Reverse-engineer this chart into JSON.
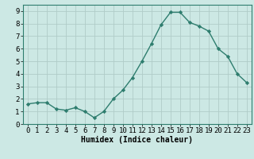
{
  "x": [
    0,
    1,
    2,
    3,
    4,
    5,
    6,
    7,
    8,
    9,
    10,
    11,
    12,
    13,
    14,
    15,
    16,
    17,
    18,
    19,
    20,
    21,
    22,
    23
  ],
  "y": [
    1.6,
    1.7,
    1.7,
    1.2,
    1.1,
    1.3,
    1.0,
    0.5,
    1.0,
    2.0,
    2.7,
    3.7,
    5.0,
    6.4,
    7.9,
    8.9,
    8.9,
    8.1,
    7.8,
    7.4,
    6.0,
    5.4,
    4.0,
    3.3
  ],
  "line_color": "#2e7d6e",
  "marker": "D",
  "marker_size": 2.2,
  "line_width": 1.0,
  "background_color": "#cce8e4",
  "grid_color": "#b0ccc8",
  "xlabel": "Humidex (Indice chaleur)",
  "xlabel_fontsize": 7,
  "tick_fontsize": 6.5,
  "xlim": [
    -0.5,
    23.5
  ],
  "ylim": [
    0,
    9.5
  ],
  "yticks": [
    0,
    1,
    2,
    3,
    4,
    5,
    6,
    7,
    8,
    9
  ],
  "xticks": [
    0,
    1,
    2,
    3,
    4,
    5,
    6,
    7,
    8,
    9,
    10,
    11,
    12,
    13,
    14,
    15,
    16,
    17,
    18,
    19,
    20,
    21,
    22,
    23
  ]
}
